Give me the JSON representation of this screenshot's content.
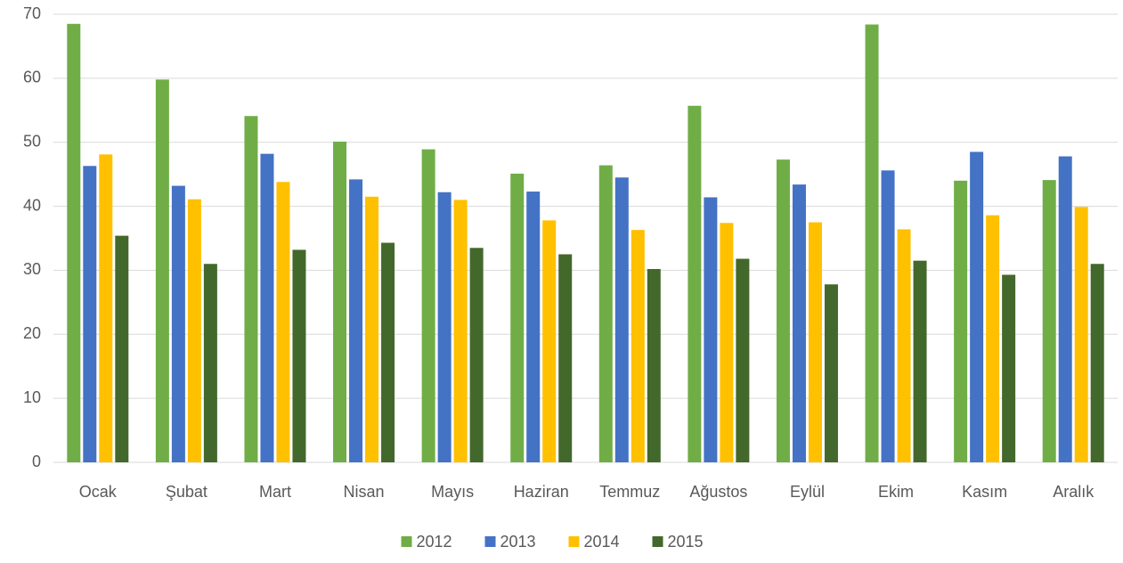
{
  "chart_data": {
    "type": "bar",
    "categories": [
      "Ocak",
      "Şubat",
      "Mart",
      "Nisan",
      "Mayıs",
      "Haziran",
      "Temmuz",
      "Ağustos",
      "Eylül",
      "Ekim",
      "Kasım",
      "Aralık"
    ],
    "series": [
      {
        "name": "2012",
        "color": "#70ad47",
        "values": [
          68.5,
          59.8,
          54.1,
          50.1,
          48.9,
          45.1,
          46.4,
          55.7,
          47.3,
          68.4,
          44.0,
          44.1
        ]
      },
      {
        "name": "2013",
        "color": "#4472c4",
        "values": [
          46.3,
          43.2,
          48.2,
          44.2,
          42.2,
          42.3,
          44.5,
          41.4,
          43.4,
          45.6,
          48.5,
          47.8
        ]
      },
      {
        "name": "2014",
        "color": "#ffc000",
        "values": [
          48.1,
          41.1,
          43.8,
          41.5,
          41.0,
          37.8,
          36.3,
          37.4,
          37.5,
          36.4,
          38.6,
          39.9
        ]
      },
      {
        "name": "2015",
        "color": "#43682b",
        "values": [
          35.4,
          31.0,
          33.2,
          34.3,
          33.5,
          32.5,
          30.2,
          31.8,
          27.8,
          31.5,
          29.3,
          31.0
        ]
      }
    ],
    "ylim": [
      0,
      70
    ],
    "yticks": [
      0,
      10,
      20,
      30,
      40,
      50,
      60,
      70
    ],
    "grid": true,
    "legend": "bottom"
  }
}
